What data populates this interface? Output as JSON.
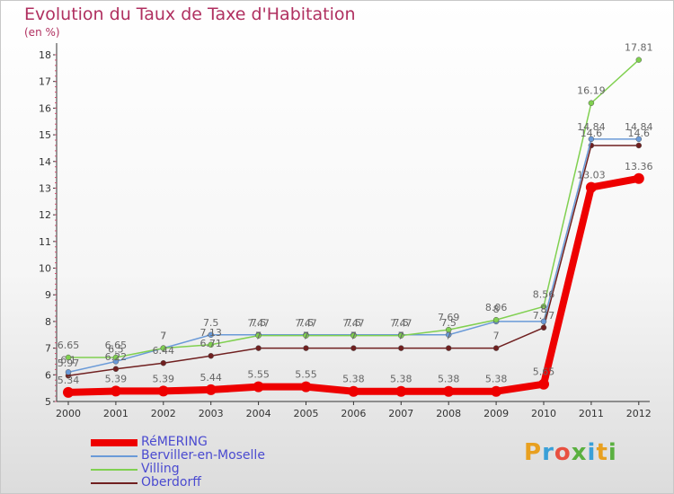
{
  "header": {
    "title": "Evolution du Taux de Taxe d'Habitation",
    "unit": "(en %)"
  },
  "brand": {
    "logo_text": "Proxiti",
    "logo_colors": [
      "#e8a020",
      "#3aa0d8",
      "#e85040",
      "#5ab040",
      "#3aa0d8",
      "#e8a020",
      "#5ab040"
    ]
  },
  "chart_data": {
    "type": "line",
    "title": "Evolution du Taux de Taxe d'Habitation",
    "ylabel": "(en %)",
    "xlabel": "",
    "ylim": [
      5,
      18
    ],
    "yticks": [
      5,
      6,
      7,
      8,
      9,
      10,
      11,
      12,
      13,
      14,
      15,
      16,
      17,
      18
    ],
    "categories": [
      "2000",
      "2001",
      "2002",
      "2003",
      "2004",
      "2005",
      "2006",
      "2007",
      "2008",
      "2009",
      "2010",
      "2011",
      "2012"
    ],
    "grid": false,
    "legend_position": "bottom-left",
    "series": [
      {
        "name": "RéMERING",
        "color": "#ee0000",
        "values": [
          5.34,
          5.39,
          5.39,
          5.44,
          5.55,
          5.55,
          5.38,
          5.38,
          5.38,
          5.38,
          5.65,
          13.03,
          13.36
        ],
        "labels": [
          "5.34",
          "5.39",
          "5.39",
          "5.44",
          "5.55",
          "5.55",
          "5.38",
          "5.38",
          "5.38",
          "5.38",
          "5.65",
          "13.03",
          "13.36"
        ]
      },
      {
        "name": "Berviller-en-Moselle",
        "color": "#6a9ad8",
        "values": [
          6.1,
          6.5,
          7,
          7.5,
          7.5,
          7.5,
          7.5,
          7.5,
          7.5,
          8,
          8,
          14.84,
          14.84
        ],
        "labels": [
          "6.1",
          "6.5",
          "7",
          "7.5",
          "7.5",
          "7.5",
          "7.5",
          "7.5",
          "7.5",
          "8",
          "8",
          "14.84",
          "14.84"
        ]
      },
      {
        "name": "Villing",
        "color": "#80d050",
        "values": [
          6.65,
          6.65,
          7,
          7.13,
          7.47,
          7.47,
          7.47,
          7.47,
          7.69,
          8.06,
          8.56,
          16.19,
          17.81
        ],
        "labels": [
          "6.65",
          "6.65",
          "7",
          "7.13",
          "7.47",
          "7.47",
          "7.47",
          "7.47",
          "7.69",
          "8.06",
          "8.56",
          "16.19",
          "17.81"
        ]
      },
      {
        "name": "Oberdorff",
        "color": "#702020",
        "values": [
          5.97,
          6.22,
          6.44,
          6.71,
          7,
          7,
          7,
          7,
          7,
          7,
          7.77,
          14.6,
          14.6
        ],
        "labels": [
          "5.97",
          "6.22",
          "6.44",
          "6.71",
          "7",
          "7",
          "7",
          "7",
          "7",
          "7",
          "7.77",
          "14.6",
          "14.6"
        ]
      }
    ]
  }
}
